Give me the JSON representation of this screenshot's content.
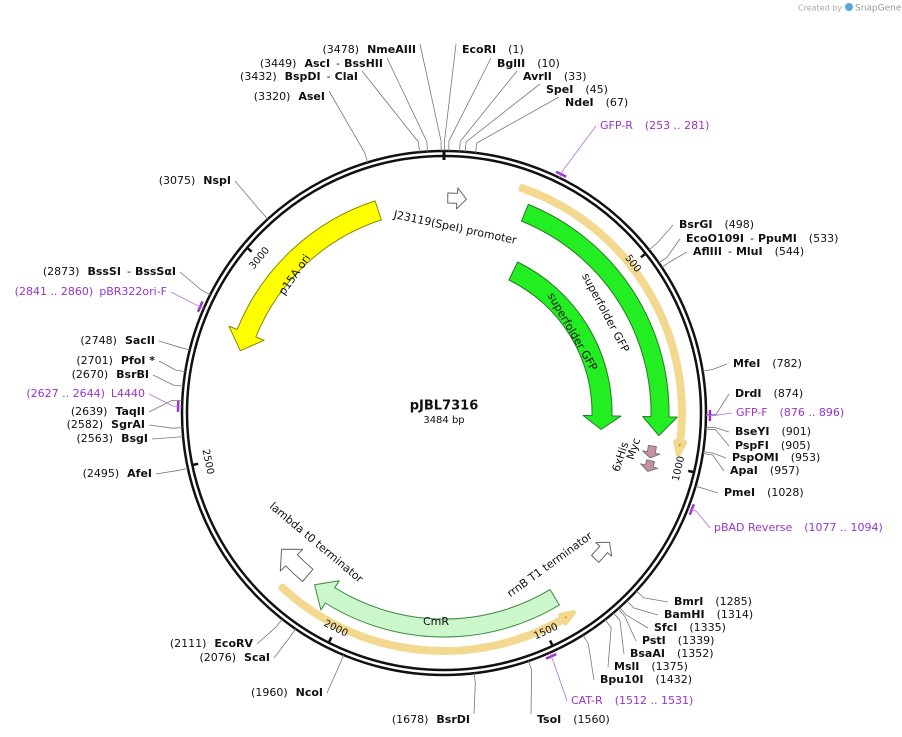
{
  "credit": {
    "prefix": "Created by",
    "brand": "SnapGene"
  },
  "plasmid": {
    "name": "pJBL7316",
    "size": "3484 bp"
  },
  "name_separator": "-",
  "enzymes": [
    {
      "site": "(3478)",
      "names": [
        "NmeAIII"
      ]
    },
    {
      "site": "(3449)",
      "names": [
        "AscI",
        "BssHII"
      ]
    },
    {
      "site": "(3432)",
      "names": [
        "BspDI",
        "ClaI"
      ]
    },
    {
      "site": "(3320)",
      "names": [
        "AseI"
      ]
    },
    {
      "site": "(3075)",
      "names": [
        "NspI"
      ]
    },
    {
      "site": "(2873)",
      "names": [
        "BssSI",
        "BssSαI"
      ]
    },
    {
      "site": "(2748)",
      "names": [
        "SacII"
      ]
    },
    {
      "site": "(2701)",
      "names": [
        "PfoI *"
      ]
    },
    {
      "site": "(2670)",
      "names": [
        "BsrBI"
      ]
    },
    {
      "site": "(2639)",
      "names": [
        "TaqII"
      ]
    },
    {
      "site": "(2582)",
      "names": [
        "SgrAI"
      ]
    },
    {
      "site": "(2563)",
      "names": [
        "BsgI"
      ]
    },
    {
      "site": "(2495)",
      "names": [
        "AfeI"
      ]
    },
    {
      "site": "(2111)",
      "names": [
        "EcoRV"
      ]
    },
    {
      "site": "(2076)",
      "names": [
        "ScaI"
      ]
    },
    {
      "site": "(1960)",
      "names": [
        "NcoI"
      ]
    },
    {
      "site": "(1678)",
      "names": [
        "BsrDI"
      ]
    },
    {
      "site": "(1)",
      "names": [
        "EcoRI"
      ]
    },
    {
      "site": "(10)",
      "names": [
        "BglII"
      ]
    },
    {
      "site": "(33)",
      "names": [
        "AvrII"
      ]
    },
    {
      "site": "(45)",
      "names": [
        "SpeI"
      ]
    },
    {
      "site": "(67)",
      "names": [
        "NdeI"
      ]
    },
    {
      "site": "(498)",
      "names": [
        "BsrGI"
      ]
    },
    {
      "site": "(533)",
      "names": [
        "EcoO109I",
        "PpuMI"
      ]
    },
    {
      "site": "(544)",
      "names": [
        "AflIII",
        "MluI"
      ]
    },
    {
      "site": "(782)",
      "names": [
        "MfeI"
      ]
    },
    {
      "site": "(874)",
      "names": [
        "DrdI"
      ]
    },
    {
      "site": "(901)",
      "names": [
        "BseYI"
      ]
    },
    {
      "site": "(905)",
      "names": [
        "PspFI"
      ]
    },
    {
      "site": "(953)",
      "names": [
        "PspOMI"
      ]
    },
    {
      "site": "(957)",
      "names": [
        "ApaI"
      ]
    },
    {
      "site": "(1028)",
      "names": [
        "PmeI"
      ]
    },
    {
      "site": "(1285)",
      "names": [
        "BmrI"
      ]
    },
    {
      "site": "(1314)",
      "names": [
        "BamHI"
      ]
    },
    {
      "site": "(1335)",
      "names": [
        "SfcI"
      ]
    },
    {
      "site": "(1339)",
      "names": [
        "PstI"
      ]
    },
    {
      "site": "(1352)",
      "names": [
        "BsaAI"
      ]
    },
    {
      "site": "(1375)",
      "names": [
        "MslI"
      ]
    },
    {
      "site": "(1432)",
      "names": [
        "Bpu10I"
      ]
    },
    {
      "site": "(1560)",
      "names": [
        "TsoI"
      ]
    }
  ],
  "primers": [
    {
      "name": "GFP-R",
      "range": "(253 .. 281)"
    },
    {
      "name": "GFP-F",
      "range": "(876 .. 896)"
    },
    {
      "name": "pBAD Reverse",
      "range": "(1077 .. 1094)"
    },
    {
      "name": "CAT-R",
      "range": "(1512 .. 1531)"
    },
    {
      "name": "pBR322ori-F",
      "range": "(2841 .. 2860)"
    },
    {
      "name": "L4440",
      "range": "(2627 .. 2644)"
    }
  ],
  "features": [
    {
      "label": "J23119(SpeI) promoter"
    },
    {
      "label": "superfolder GFP"
    },
    {
      "label": "superfolder GFP"
    },
    {
      "label": "p15A ori"
    },
    {
      "label": "rrnB T1 terminator"
    },
    {
      "label": "lambda t0 terminator"
    },
    {
      "label": "CmR"
    },
    {
      "label": "Myc"
    },
    {
      "label": "6xHis"
    }
  ],
  "ruler": [
    "500",
    "1000",
    "1500",
    "2000",
    "2500",
    "3000"
  ]
}
